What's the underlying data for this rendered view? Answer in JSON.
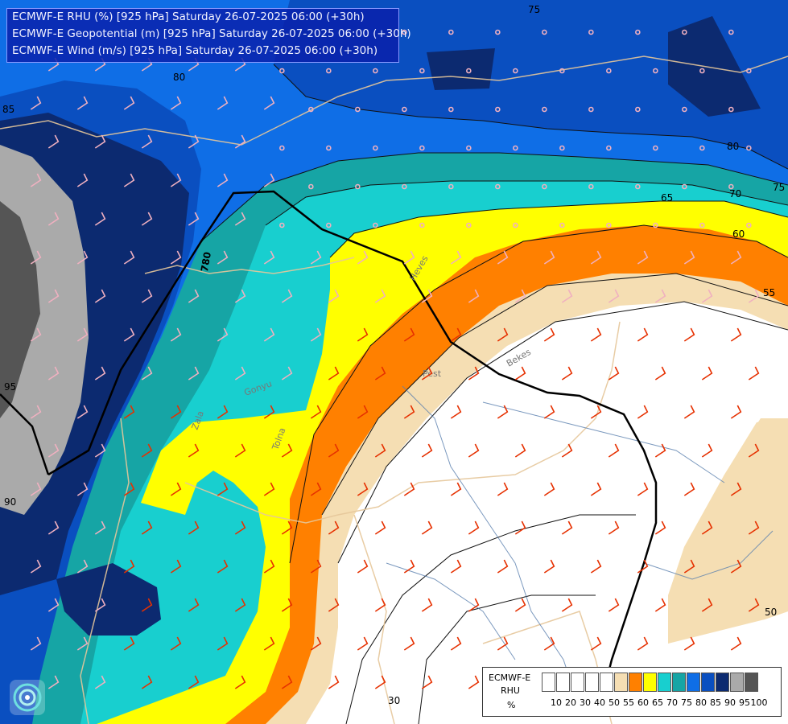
{
  "title": {
    "line1": "ECMWF-E RHU (%) [925 hPa] Saturday 26-07-2025 06:00 (+30h)",
    "line2": "ECMWF-E Geopotential (m) [925 hPa] Saturday 26-07-2025 06:00 (+30h)",
    "line3": "ECMWF-E Wind (m/s) [925 hPa] Saturday 26-07-2025 06:00 (+30h)"
  },
  "legend": {
    "line1": "ECMWF-E",
    "line2": "RHU",
    "line3": "%",
    "ticks": [
      "10",
      "20",
      "30",
      "40",
      "50",
      "55",
      "60",
      "65",
      "70",
      "75",
      "80",
      "85",
      "90",
      "95",
      "100"
    ],
    "colors": [
      "#ffffff",
      "#ffffff",
      "#ffffff",
      "#ffffff",
      "#ffffff",
      "#f5deb3",
      "#ff8000",
      "#ffff00",
      "#18cfcf",
      "#16a5a5",
      "#0f6ee6",
      "#0a4fc0",
      "#0c2a70",
      "#aaaaaa",
      "#555555"
    ]
  },
  "contour_labels": [
    "75",
    "80",
    "80",
    "70",
    "75",
    "65",
    "60",
    "55",
    "50",
    "85",
    "95",
    "90",
    "30"
  ],
  "geopotential_label": "780",
  "place_labels": [
    "Pest",
    "Bekes",
    "Tolna",
    "Zala",
    "Heves",
    "Gonyu"
  ],
  "logo_icon": "ecmwf-logo-icon"
}
